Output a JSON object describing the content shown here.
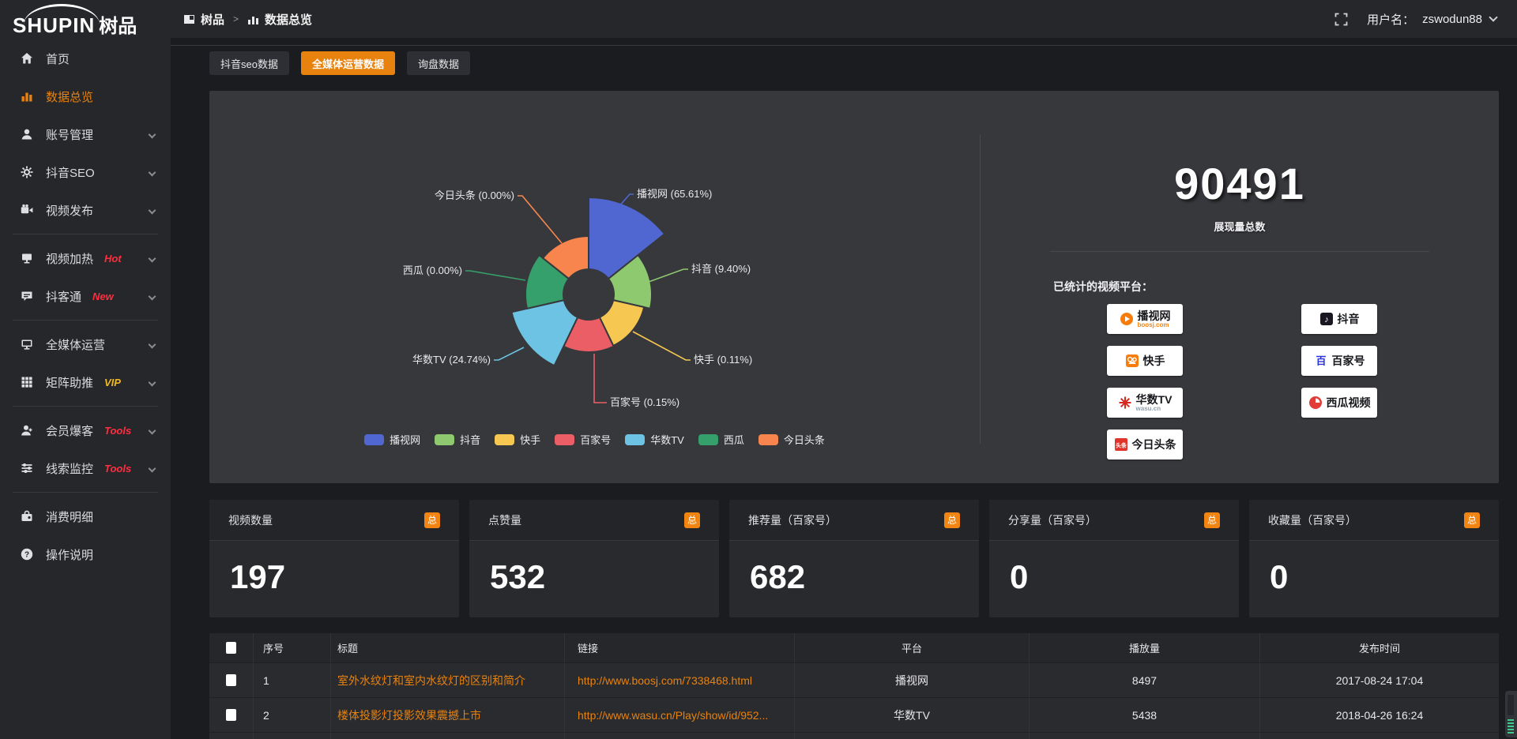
{
  "header": {
    "logo_en": "SHUPIN",
    "logo_cn": "树品",
    "breadcrumb": {
      "root": "树品",
      "separator": ">",
      "current": "数据总览"
    },
    "username_label": "用户名：",
    "username": "zswodun88"
  },
  "sidebar": {
    "items": [
      {
        "label": "首页",
        "icon": "home",
        "active": false,
        "chevron": false
      },
      {
        "label": "数据总览",
        "icon": "chart",
        "active": true,
        "chevron": false
      },
      {
        "label": "账号管理",
        "icon": "user",
        "chevron": true
      },
      {
        "label": "抖音SEO",
        "icon": "gear",
        "chevron": true
      },
      {
        "label": "视频发布",
        "icon": "video",
        "chevron": true,
        "divider_after": true
      },
      {
        "label": "视频加热",
        "icon": "heat",
        "badge": "Hot",
        "badge_color": "#ff2d3f",
        "chevron": true
      },
      {
        "label": "抖客通",
        "icon": "chat",
        "badge": "New",
        "badge_color": "#ff2d3f",
        "chevron": true,
        "divider_after": true
      },
      {
        "label": "全媒体运营",
        "icon": "monitor",
        "chevron": true
      },
      {
        "label": "矩阵助推",
        "icon": "grid",
        "badge": "VIP",
        "badge_color": "#f2b824",
        "chevron": true,
        "divider_after": true
      },
      {
        "label": "会员爆客",
        "icon": "member",
        "badge": "Tools",
        "badge_color": "#ff2d3f",
        "chevron": true
      },
      {
        "label": "线索监控",
        "icon": "sliders",
        "badge": "Tools",
        "badge_color": "#ff2d3f",
        "chevron": true,
        "divider_after": true
      },
      {
        "label": "消费明细",
        "icon": "wallet",
        "chevron": false
      },
      {
        "label": "操作说明",
        "icon": "question",
        "chevron": false
      }
    ]
  },
  "tabs": [
    {
      "label": "抖音seo数据",
      "active": false
    },
    {
      "label": "全媒体运营数据",
      "active": true
    },
    {
      "label": "询盘数据",
      "active": false
    }
  ],
  "chart_data": {
    "type": "pie",
    "subtype": "nightingale-rose",
    "slices": [
      {
        "name": "播视网",
        "percent": 65.61,
        "label": "播视网 (65.61%)",
        "color": "#5066d0",
        "radius": 123
      },
      {
        "name": "抖音",
        "percent": 9.4,
        "label": "抖音 (9.40%)",
        "color": "#8fc96f",
        "radius": 80
      },
      {
        "name": "快手",
        "percent": 0.11,
        "label": "快手 (0.11%)",
        "color": "#f7c851",
        "radius": 72
      },
      {
        "name": "百家号",
        "percent": 0.15,
        "label": "百家号 (0.15%)",
        "color": "#ec5e66",
        "radius": 73
      },
      {
        "name": "华数TV",
        "percent": 24.74,
        "label": "华数TV (24.74%)",
        "color": "#6cc3e3",
        "radius": 100
      },
      {
        "name": "西瓜",
        "percent": 0.0,
        "label": "西瓜 (0.00%)",
        "color": "#35a06b",
        "radius": 80
      },
      {
        "name": "今日头条",
        "percent": 0.0,
        "label": "今日头条 (0.00%)",
        "color": "#f8854d",
        "radius": 74
      }
    ],
    "legend": [
      "播视网",
      "抖音",
      "快手",
      "百家号",
      "华数TV",
      "西瓜",
      "今日头条"
    ],
    "legend_position": "bottom",
    "inner_radius": 32
  },
  "summary": {
    "total_value": "90491",
    "total_label": "展现量总数",
    "platforms_label": "已统计的视频平台：",
    "platforms": [
      {
        "name": "播视网",
        "sub": "boosj.com",
        "icon": "boosj"
      },
      {
        "name": "抖音",
        "sub": "",
        "icon": "douyin"
      },
      {
        "name": "快手",
        "sub": "",
        "icon": "kuaishou"
      },
      {
        "name": "百家号",
        "sub": "",
        "icon": "baijia"
      },
      {
        "name": "华数TV",
        "sub": "wasu.cn",
        "icon": "wasu"
      },
      {
        "name": "西瓜视频",
        "sub": "",
        "icon": "xigua"
      },
      {
        "name": "今日头条",
        "sub": "",
        "icon": "toutiao"
      }
    ]
  },
  "stat_cards": [
    {
      "title": "视频数量",
      "badge": "总",
      "value": "197"
    },
    {
      "title": "点赞量",
      "badge": "总",
      "value": "532"
    },
    {
      "title": "推荐量（百家号）",
      "badge": "总",
      "value": "682"
    },
    {
      "title": "分享量（百家号）",
      "badge": "总",
      "value": "0"
    },
    {
      "title": "收藏量（百家号）",
      "badge": "总",
      "value": "0"
    }
  ],
  "table": {
    "columns": [
      "序号",
      "标题",
      "链接",
      "平台",
      "播放量",
      "发布时间"
    ],
    "rows": [
      {
        "index": "1",
        "title": "室外水纹灯和室内水纹灯的区别和简介",
        "link": "http://www.boosj.com/7338468.html",
        "platform": "播视网",
        "views": "8497",
        "time": "2017-08-24 17:04"
      },
      {
        "index": "2",
        "title": "楼体投影灯投影效果震撼上市",
        "link": "http://www.wasu.cn/Play/show/id/952...",
        "platform": "华数TV",
        "views": "5438",
        "time": "2018-04-26 16:24"
      }
    ]
  },
  "colors": {
    "accent": "#e8820e",
    "badge_orange": "#f28411",
    "panel_bg": "#37383c",
    "hot_red": "#ff2d3f",
    "vip_yellow": "#f2b824"
  }
}
